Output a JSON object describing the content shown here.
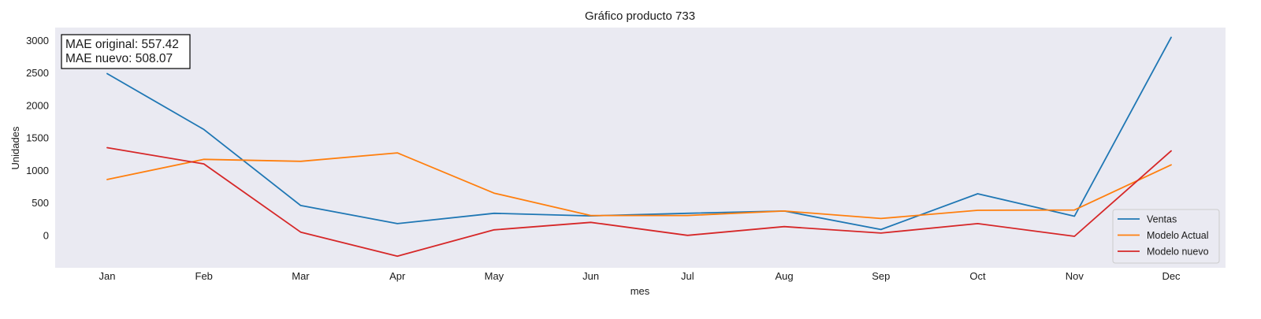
{
  "chart_data": {
    "type": "line",
    "title": "Gráfico producto 733",
    "xlabel": "mes",
    "ylabel": "Unidades",
    "categories": [
      "Jan",
      "Feb",
      "Mar",
      "Apr",
      "May",
      "Jun",
      "Jul",
      "Aug",
      "Sep",
      "Oct",
      "Nov",
      "Dec"
    ],
    "yticks": [
      0,
      500,
      1000,
      1500,
      2000,
      2500,
      3000
    ],
    "ylim": [
      -500,
      3200
    ],
    "grid": false,
    "legend_position": "bottom-right",
    "series": [
      {
        "name": "Ventas",
        "color": "#1f77b4",
        "values": [
          2490,
          1630,
          460,
          180,
          340,
          300,
          340,
          375,
          90,
          640,
          295,
          3050
        ]
      },
      {
        "name": "Modelo Actual",
        "color": "#ff7f0e",
        "values": [
          860,
          1170,
          1140,
          1270,
          650,
          305,
          305,
          375,
          260,
          385,
          390,
          1085
        ]
      },
      {
        "name": "Modelo nuevo",
        "color": "#d62728",
        "values": [
          1350,
          1100,
          50,
          -320,
          85,
          200,
          0,
          135,
          35,
          180,
          -15,
          1300
        ]
      }
    ],
    "annotation": {
      "lines": [
        "MAE original: 557.42",
        "MAE nuevo: 508.07"
      ]
    }
  }
}
